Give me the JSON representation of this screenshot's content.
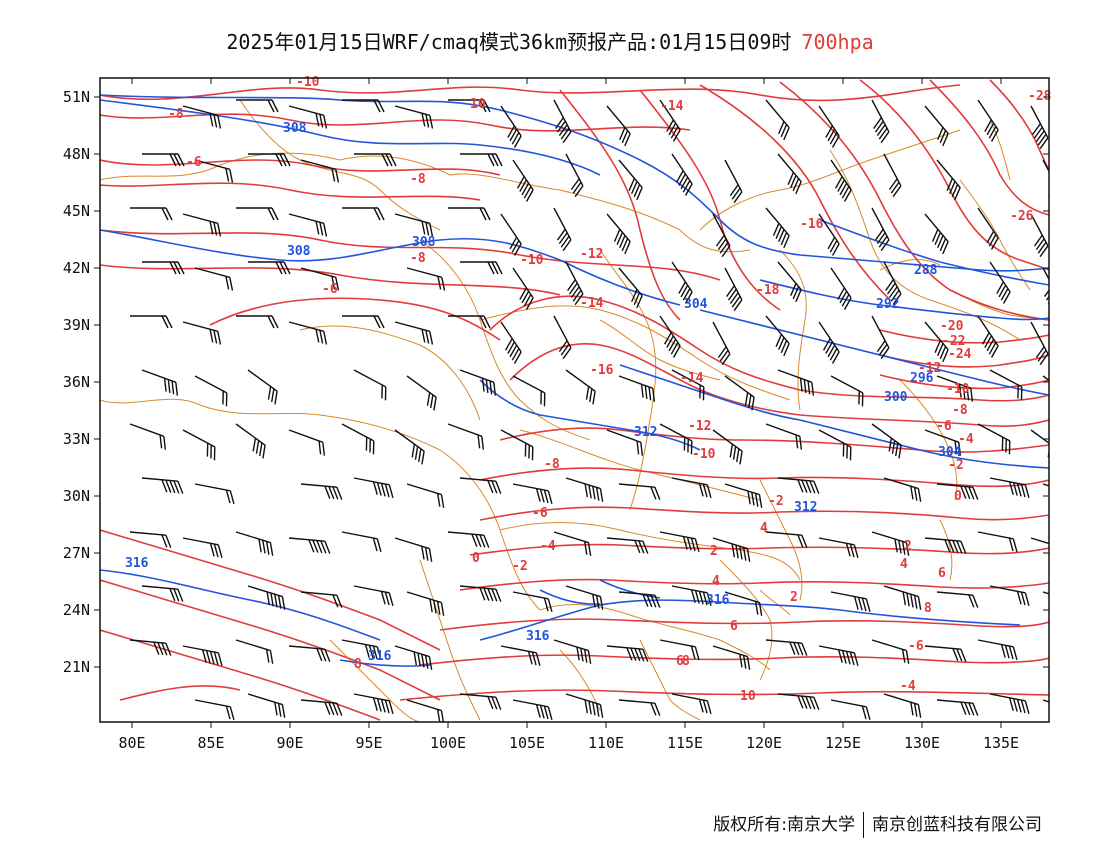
{
  "title": {
    "main": "2025年01月15日WRF/cmaq模式36km预报产品:01月15日09时",
    "level": "700hpa",
    "level_color": "#e23b3b"
  },
  "axes": {
    "x_ticks": [
      "80E",
      "85E",
      "90E",
      "95E",
      "100E",
      "105E",
      "110E",
      "115E",
      "120E",
      "125E",
      "130E",
      "135E"
    ],
    "y_ticks": [
      "51N",
      "48N",
      "45N",
      "42N",
      "39N",
      "36N",
      "33N",
      "30N",
      "27N",
      "24N",
      "21N"
    ]
  },
  "colors": {
    "temperature_contour": "#e23b3b",
    "height_contour": "#2255dd",
    "boundary": "#d98a2b",
    "wind_barb": "#111111"
  },
  "temperature_labels": [
    "-10",
    "-8",
    "-6",
    "-8",
    "-6",
    "-8",
    "-10",
    "-12",
    "-14",
    "-16",
    "-14",
    "-12",
    "-10",
    "-8",
    "-6",
    "-4",
    "-2",
    "0",
    "2",
    "4",
    "6",
    "8",
    "10",
    "-14",
    "-16",
    "-18",
    "-20",
    "-22",
    "-24",
    "-26",
    "-28",
    "-12",
    "-10",
    "-8",
    "-6",
    "-4",
    "-2",
    "0",
    "2",
    "4",
    "6",
    "8",
    "-6",
    "-4",
    "-2",
    "2",
    "4",
    "6",
    "8",
    "10"
  ],
  "height_labels": [
    "308",
    "308",
    "304",
    "308",
    "312",
    "316",
    "316",
    "316",
    "312",
    "300",
    "296",
    "292",
    "288",
    "304",
    "316"
  ],
  "credit": {
    "left": "版权所有:南京大学",
    "right": "南京创蓝科技有限公司"
  }
}
